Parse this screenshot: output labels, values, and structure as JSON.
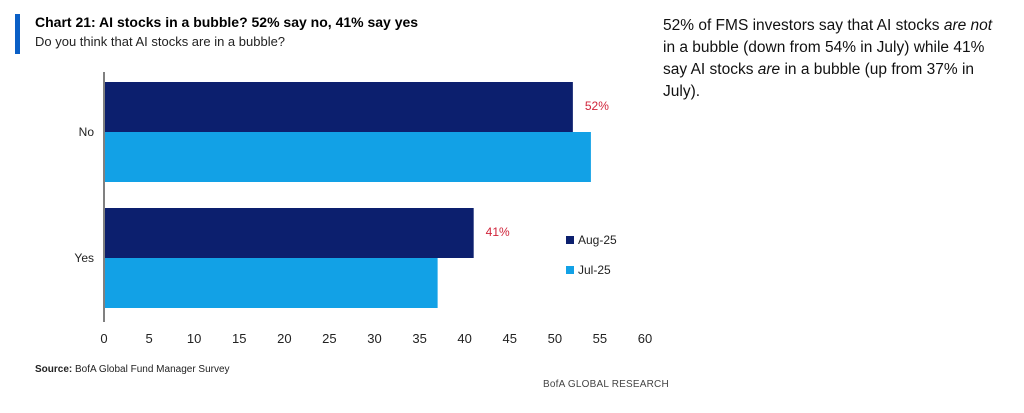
{
  "header": {
    "title": "Chart 21: AI stocks in a bubble? 52% say no, 41% say yes",
    "subtitle": "Do you think that AI stocks are in a bubble?",
    "accent_color": "#0a5fc6"
  },
  "chart_data": {
    "type": "bar",
    "orientation": "horizontal",
    "categories": [
      "No",
      "Yes"
    ],
    "series": [
      {
        "name": "Aug-25",
        "color": "#0c1f6e",
        "values": [
          52,
          41
        ]
      },
      {
        "name": "Jul-25",
        "color": "#12a1e6",
        "values": [
          54,
          37
        ]
      }
    ],
    "data_labels": [
      "52%",
      "41%"
    ],
    "data_label_color": "#d0243a",
    "xlim": [
      0,
      60
    ],
    "xticks": [
      0,
      5,
      10,
      15,
      20,
      25,
      30,
      35,
      40,
      45,
      50,
      55,
      60
    ],
    "xtick_labels": [
      "0",
      "5",
      "10",
      "15",
      "20",
      "25",
      "30",
      "35",
      "40",
      "45",
      "50",
      "55",
      "60"
    ],
    "grid": false,
    "legend_position": "right"
  },
  "footer": {
    "source_label": "Source:",
    "source_text": "BofA Global Fund Manager Survey",
    "brand": "BofA GLOBAL RESEARCH"
  },
  "commentary": {
    "part1": "52% of FMS investors say that AI stocks ",
    "em1": "are not",
    "part2": " in a bubble (down from 54% in July) while 41% say AI stocks ",
    "em2": "are",
    "part3": " in a bubble (up from 37% in July)."
  }
}
